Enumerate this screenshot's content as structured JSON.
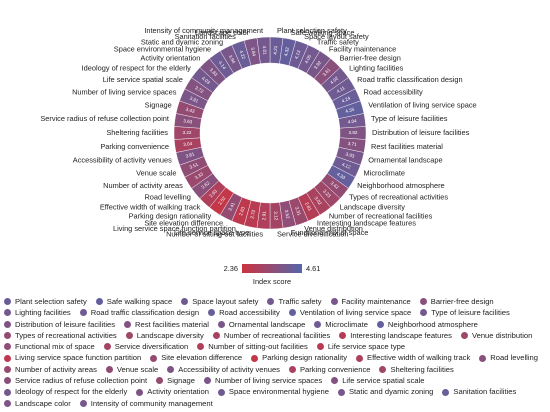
{
  "chart_data": {
    "type": "radial-heatmap",
    "categories": [
      "Plant selection safety",
      "Safe walking space",
      "Space layout safety",
      "Traffic safety",
      "Facility maintenance",
      "Barrier-free design",
      "Lighting facilities",
      "Road traffic classification design",
      "Road accessibility",
      "Ventilation of living service space",
      "Type of leisure facilities",
      "Distribution of leisure facilities",
      "Rest facilities material",
      "Ornamental landscape",
      "Microclimate",
      "Neighborhood atmosphere",
      "Types of recreational activities",
      "Landscape diversity",
      "Number of recreational facilities",
      "Interesting landscape features",
      "Venue distribution",
      "Functional mix of space",
      "Service diversification",
      "Number of sitting-out facilities",
      "Life service space type",
      "Living service space function partition",
      "Site elevation difference",
      "Parking design rationality",
      "Effective width of walking track",
      "Road levelling",
      "Number of activity areas",
      "Venue scale",
      "Accessibility of activity venues",
      "Parking convenience",
      "Sheltering facilities",
      "Service radius of refuse collection point",
      "Signage",
      "Number of living service spaces",
      "Life service spatial scale",
      "Ideology of respect for the elderly",
      "Activity orientation",
      "Space environmental hygiene",
      "Static and dyamic zoning",
      "Sanitation facilities",
      "Landscape color",
      "Intensity of community management"
    ],
    "values": [
      4.21,
      4.32,
      4.13,
      4.05,
      3.92,
      3.61,
      4.02,
      4.11,
      4.24,
      4.35,
      4.04,
      3.82,
      3.71,
      3.93,
      4.12,
      4.33,
      3.42,
      3.23,
      3.02,
      2.81,
      3.31,
      3.52,
      3.12,
      2.91,
      2.72,
      2.63,
      3.41,
      2.52,
      2.93,
      3.62,
      3.33,
      3.51,
      3.81,
      3.04,
      3.22,
      3.63,
      3.43,
      3.91,
      3.72,
      4.03,
      3.83,
      4.14,
      3.94,
      4.22,
      3.84,
      4.01
    ],
    "colormap": [
      "#cc3340",
      "#5566aa"
    ],
    "clim": [
      2.36,
      4.61
    ],
    "colorbar_label": "Index score"
  }
}
